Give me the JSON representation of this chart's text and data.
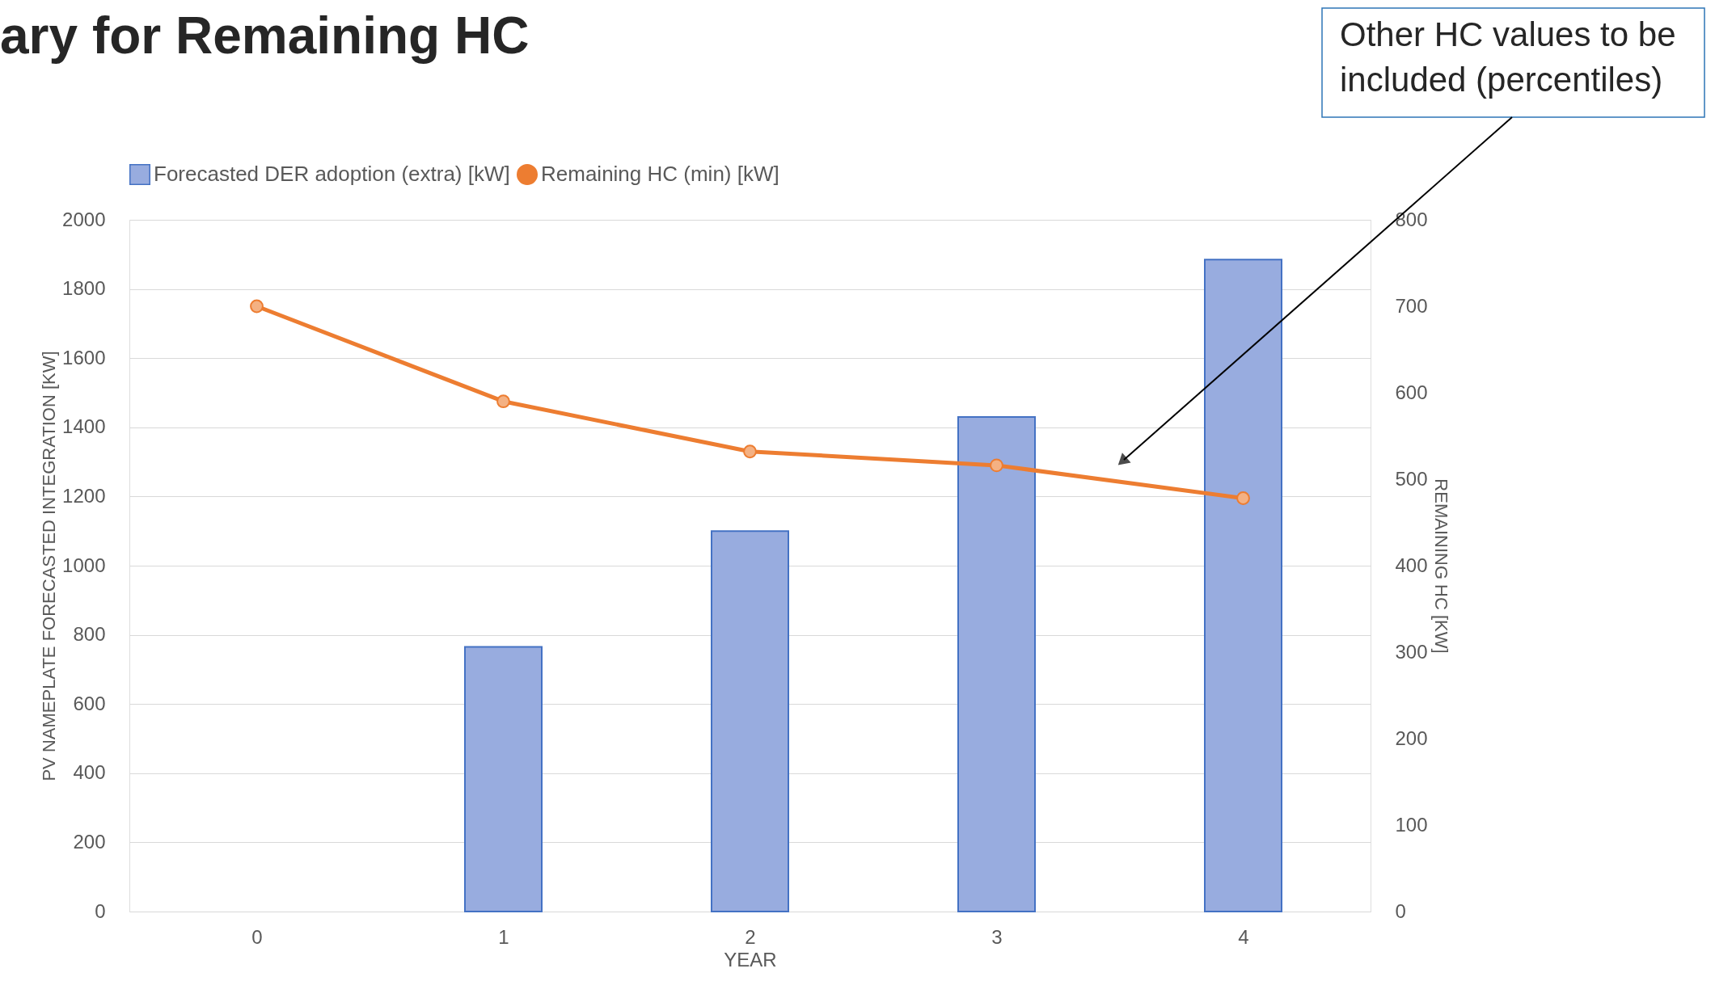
{
  "chart_data": {
    "type": "bar",
    "title": "ary for Remaining HC",
    "x": [
      0,
      1,
      2,
      3,
      4
    ],
    "xlim": [
      -0.5,
      4.5
    ],
    "xticks": [
      0,
      1,
      2,
      3,
      4
    ],
    "xlabel": "YEAR",
    "ylabel": "PV NAMEPLATE FORECASTED INTEGRATION [KW]",
    "y2label": "REMAINING HC [KW]",
    "ylim": [
      0,
      2000
    ],
    "yticks": [
      0,
      200,
      400,
      600,
      800,
      1000,
      1200,
      1400,
      1600,
      1800,
      2000
    ],
    "y2lim": [
      0,
      800
    ],
    "y2ticks": [
      0,
      100,
      200,
      300,
      400,
      500,
      600,
      700,
      800
    ],
    "series": [
      {
        "name": "Forecasted DER adoption (extra) [kW]",
        "color": "#98acdf",
        "values": [
          null,
          765,
          1100,
          1430,
          1885
        ]
      },
      {
        "name": "Remaining HC (min) [kW]",
        "type": "line",
        "axis": "y2",
        "color": "#ed7d31",
        "marker": "circle",
        "values": [
          700,
          590,
          532,
          516,
          478
        ]
      }
    ],
    "annotations": [
      "Other HC values to be included (percentiles)"
    ],
    "grid": "y",
    "legend": "top"
  }
}
